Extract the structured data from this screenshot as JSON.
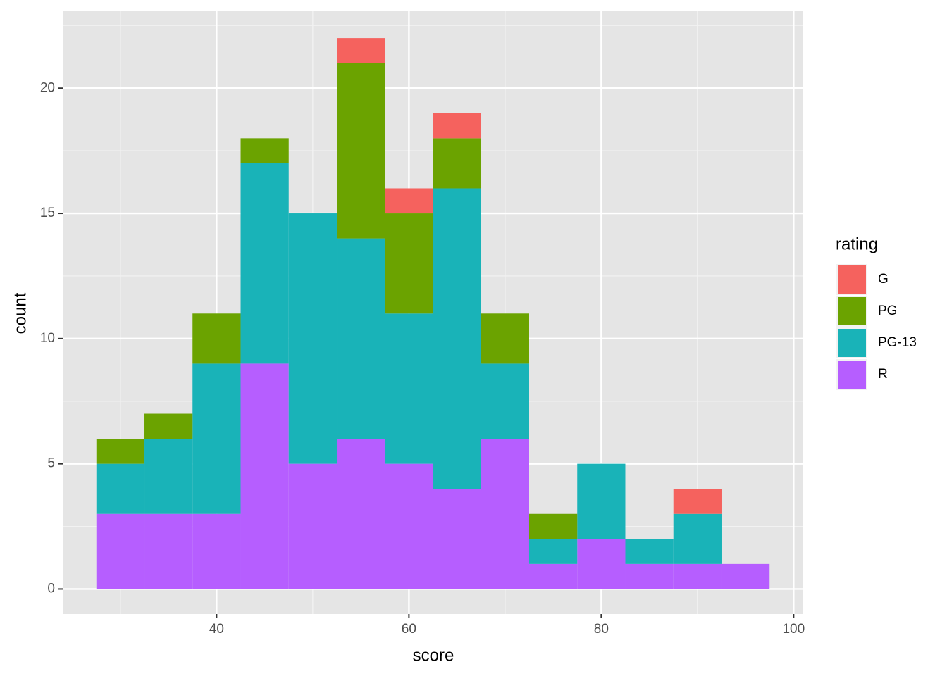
{
  "chart_data": {
    "type": "histogram",
    "x_label": "score",
    "y_label": "count",
    "bins": [
      27.5,
      32.5,
      37.5,
      42.5,
      47.5,
      52.5,
      57.5,
      62.5,
      67.5,
      72.5,
      77.5,
      82.5,
      87.5,
      92.5,
      97.5
    ],
    "legend_title": "rating",
    "series": [
      {
        "name": "G",
        "color": "#f5625e",
        "values": [
          0,
          0,
          0,
          0,
          0,
          1,
          1,
          1,
          0,
          0,
          0,
          0,
          1,
          0
        ]
      },
      {
        "name": "PG",
        "color": "#6ba300",
        "values": [
          1,
          1,
          2,
          1,
          0,
          7,
          4,
          2,
          2,
          1,
          0,
          0,
          0,
          0
        ]
      },
      {
        "name": "PG-13",
        "color": "#19b3b8",
        "values": [
          2,
          3,
          6,
          8,
          10,
          8,
          6,
          12,
          3,
          1,
          3,
          1,
          2,
          0
        ]
      },
      {
        "name": "R",
        "color": "#b65eff",
        "values": [
          3,
          3,
          3,
          9,
          5,
          6,
          5,
          4,
          6,
          1,
          2,
          1,
          1,
          1
        ]
      }
    ],
    "stacked": true,
    "xlim": [
      24,
      101
    ],
    "ylim": [
      -1,
      23.1
    ],
    "xticks": [
      40,
      60,
      80,
      100
    ],
    "yticks": [
      0,
      5,
      10,
      15,
      20
    ],
    "grid": true,
    "legend": "right"
  }
}
